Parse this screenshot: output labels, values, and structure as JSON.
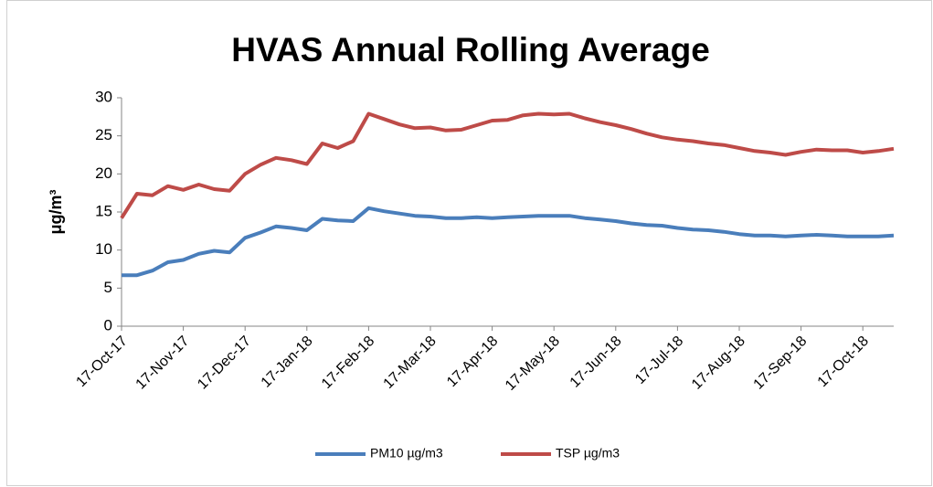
{
  "chart_data": {
    "type": "line",
    "title": "HVAS Annual Rolling Average",
    "y_label": "μg/m³",
    "categories": [
      "17-Oct-17",
      null,
      null,
      null,
      "17-Nov-17",
      null,
      null,
      null,
      "17-Dec-17",
      null,
      null,
      null,
      "17-Jan-18",
      null,
      null,
      null,
      "17-Feb-18",
      null,
      null,
      null,
      "17-Mar-18",
      null,
      null,
      null,
      "17-Apr-18",
      null,
      null,
      null,
      "17-May-18",
      null,
      null,
      null,
      "17-Jun-18",
      null,
      null,
      null,
      "17-Jul-18",
      null,
      null,
      null,
      "17-Aug-18",
      null,
      null,
      null,
      "17-Sep-18",
      null,
      null,
      null,
      "17-Oct-18",
      null,
      null
    ],
    "series": [
      {
        "name": "PM10 µg/m3",
        "color": "#4a7ebb",
        "values": [
          6.7,
          6.7,
          7.3,
          8.4,
          8.7,
          9.5,
          9.9,
          9.7,
          11.6,
          12.3,
          13.1,
          12.9,
          12.6,
          14.1,
          13.9,
          13.8,
          15.5,
          15.1,
          14.8,
          14.5,
          14.4,
          14.2,
          14.2,
          14.3,
          14.2,
          14.3,
          14.4,
          14.5,
          14.5,
          14.5,
          14.2,
          14.0,
          13.8,
          13.5,
          13.3,
          13.2,
          12.9,
          12.7,
          12.6,
          12.4,
          12.1,
          11.9,
          11.9,
          11.8,
          11.9,
          12.0,
          11.9,
          11.8,
          11.8,
          11.8,
          11.9
        ]
      },
      {
        "name": "TSP µg/m3",
        "color": "#be4b48",
        "values": [
          14.2,
          17.4,
          17.2,
          18.4,
          17.9,
          18.6,
          18.0,
          17.8,
          20.0,
          21.2,
          22.1,
          21.8,
          21.3,
          24.0,
          23.4,
          24.3,
          27.9,
          27.2,
          26.5,
          26.0,
          26.1,
          25.7,
          25.8,
          26.4,
          27.0,
          27.1,
          27.7,
          27.9,
          27.8,
          27.9,
          27.3,
          26.8,
          26.4,
          25.9,
          25.3,
          24.8,
          24.5,
          24.3,
          24.0,
          23.8,
          23.4,
          23.0,
          22.8,
          22.5,
          22.9,
          23.2,
          23.1,
          23.1,
          22.8,
          23.0,
          23.3
        ]
      }
    ],
    "ylim": [
      0,
      30
    ],
    "yticks": [
      0,
      5,
      10,
      15,
      20,
      25,
      30
    ],
    "grid": false,
    "legend": "bottom"
  }
}
